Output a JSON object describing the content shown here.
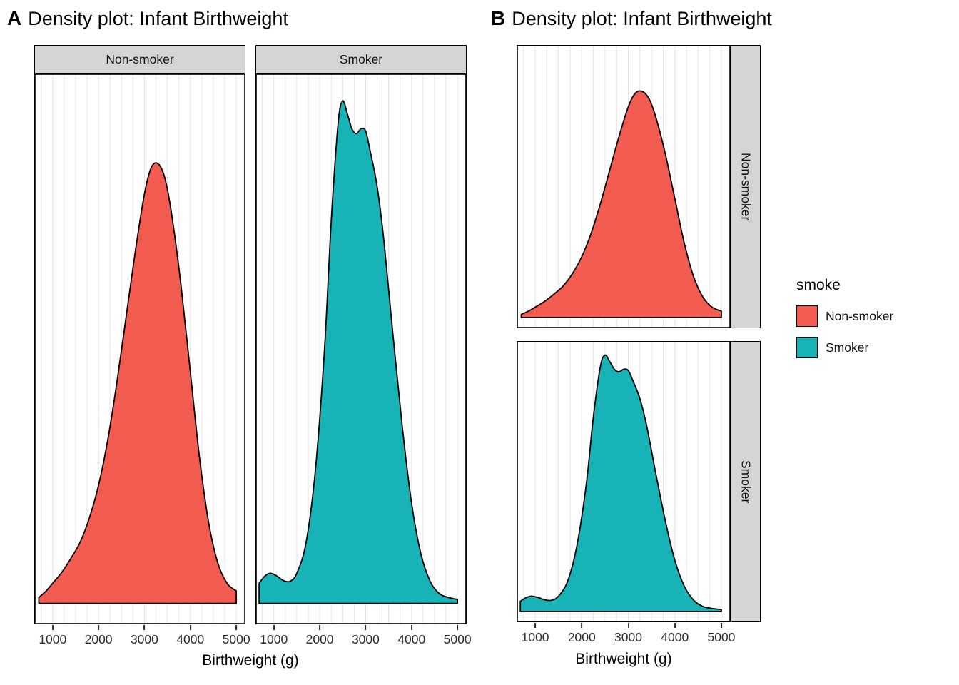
{
  "page": {
    "panel_a_label": "A",
    "panel_b_label": "B",
    "title": "Density plot: Infant Birthweight"
  },
  "facets": {
    "non_smoker": "Non-smoker",
    "smoker": "Smoker"
  },
  "axis": {
    "xlabel": "Birthweight (g)"
  },
  "legend": {
    "title": "smoke",
    "entries": [
      {
        "label": "Non-smoker",
        "color": "#F15B50"
      },
      {
        "label": "Smoker",
        "color": "#17B3B6"
      }
    ]
  },
  "chart_data": {
    "type": "area",
    "title": "Density plot: Infant Birthweight",
    "subtitle": "",
    "xlabel": "Birthweight (g)",
    "ylabel": "",
    "x_domain": [
      600,
      5200
    ],
    "x_ticks": [
      1000,
      2000,
      3000,
      4000,
      5000
    ],
    "grid_start": 750,
    "grid_step": 250,
    "grid_color": "#E3E3E3",
    "panel_border_color": "#000000",
    "strip_fill": "#D5D5D5",
    "y_note": "kernel density, normalized so shared maximum (Smoker peak at ~2500 g) = 1.0",
    "facet_variable": "smoke",
    "panels": [
      {
        "id": "A",
        "facet_strip_position": "top",
        "facet_order": [
          "Non-smoker",
          "Smoker"
        ]
      },
      {
        "id": "B",
        "facet_strip_position": "right",
        "facet_order": [
          "Non-smoker",
          "Smoker"
        ]
      }
    ],
    "legend": {
      "title": "smoke",
      "position": "right"
    },
    "series": [
      {
        "name": "Non-smoker",
        "color": "#F15B50",
        "x": [
          700,
          850,
          1000,
          1200,
          1400,
          1600,
          1800,
          2000,
          2200,
          2400,
          2600,
          2800,
          3000,
          3150,
          3300,
          3450,
          3600,
          3800,
          4000,
          4200,
          4400,
          4600,
          4800,
          5000
        ],
        "y": [
          0.012,
          0.024,
          0.04,
          0.062,
          0.09,
          0.122,
          0.17,
          0.235,
          0.325,
          0.44,
          0.57,
          0.7,
          0.815,
          0.868,
          0.875,
          0.845,
          0.77,
          0.63,
          0.46,
          0.29,
          0.16,
          0.08,
          0.04,
          0.025
        ]
      },
      {
        "name": "Smoker",
        "color": "#17B3B6",
        "x": [
          680,
          800,
          920,
          1060,
          1200,
          1350,
          1500,
          1700,
          1900,
          2100,
          2250,
          2400,
          2500,
          2600,
          2700,
          2800,
          2900,
          3000,
          3100,
          3250,
          3400,
          3600,
          3800,
          4000,
          4200,
          4400,
          4600,
          4800,
          5000
        ],
        "y": [
          0.04,
          0.054,
          0.06,
          0.055,
          0.046,
          0.044,
          0.06,
          0.12,
          0.26,
          0.5,
          0.76,
          0.955,
          1.0,
          0.975,
          0.945,
          0.935,
          0.945,
          0.94,
          0.9,
          0.83,
          0.72,
          0.53,
          0.35,
          0.2,
          0.1,
          0.045,
          0.02,
          0.012,
          0.008
        ]
      }
    ]
  }
}
